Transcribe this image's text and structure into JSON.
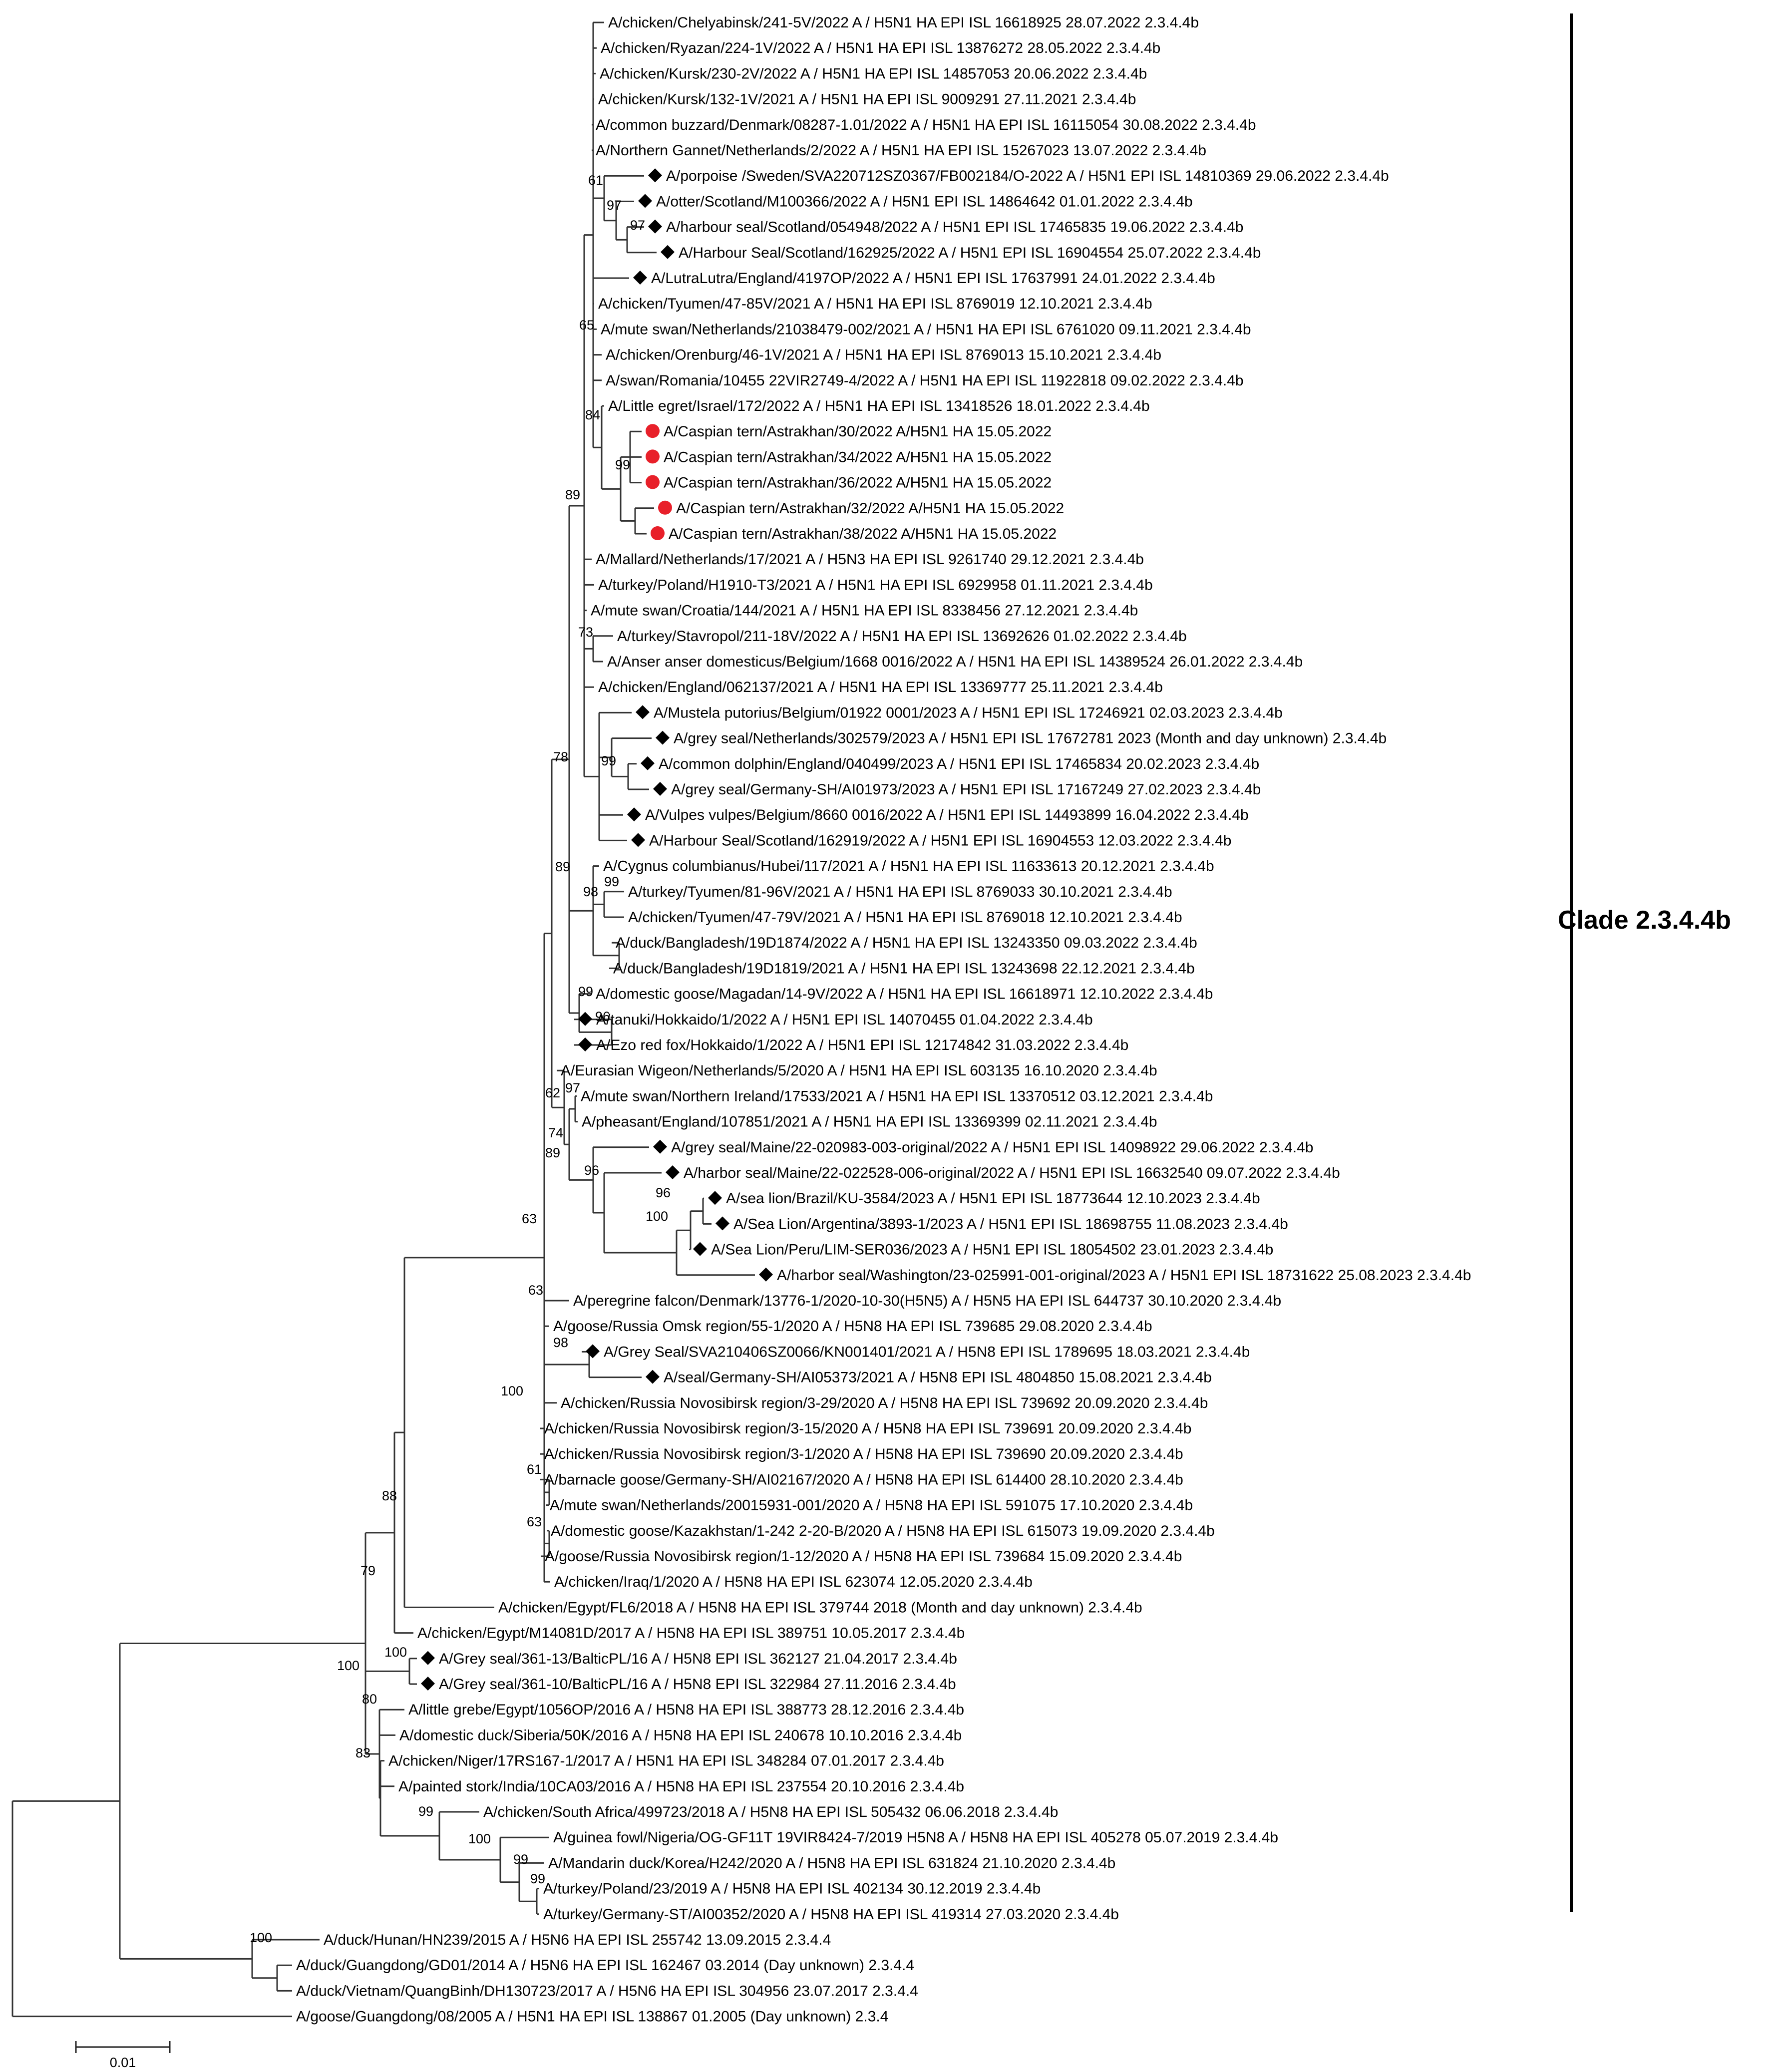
{
  "figure": {
    "clade_label": "Clade 2.3.4.4b",
    "scale_bar_label": "0.01",
    "marker_colors": {
      "red_circle": "#e8202a",
      "black_diamond": "#000000"
    }
  },
  "tree": {
    "type": "phylogenetic_tree",
    "marker_legend": {
      "circle": "red circle",
      "diamond": "black diamond"
    },
    "taxa": [
      {
        "label": "A/chicken/Chelyabinsk/241-5V/2022 A / H5N1 HA EPI ISL 16618925 28.07.2022 2.3.4.4b",
        "marker": null
      },
      {
        "label": "A/chicken/Ryazan/224-1V/2022 A / H5N1 HA EPI ISL 13876272 28.05.2022 2.3.4.4b",
        "marker": null
      },
      {
        "label": "A/chicken/Kursk/230-2V/2022 A / H5N1 HA EPI ISL 14857053 20.06.2022 2.3.4.4b",
        "marker": null
      },
      {
        "label": "A/chicken/Kursk/132-1V/2021 A / H5N1 HA EPI ISL 9009291 27.11.2021 2.3.4.4b",
        "marker": null
      },
      {
        "label": "A/common buzzard/Denmark/08287-1.01/2022 A / H5N1 HA EPI ISL 16115054 30.08.2022 2.3.4.4b",
        "marker": null
      },
      {
        "label": "A/Northern Gannet/Netherlands/2/2022 A / H5N1 HA EPI ISL 15267023 13.07.2022 2.3.4.4b",
        "marker": null
      },
      {
        "label": "A/porpoise /Sweden/SVA220712SZ0367/FB002184/O-2022 A / H5N1 EPI ISL 14810369 29.06.2022 2.3.4.4b",
        "marker": "diamond"
      },
      {
        "label": "A/otter/Scotland/M100366/2022 A / H5N1 EPI ISL 14864642 01.01.2022 2.3.4.4b",
        "marker": "diamond"
      },
      {
        "label": "A/harbour seal/Scotland/054948/2022 A / H5N1 EPI ISL 17465835 19.06.2022 2.3.4.4b",
        "marker": "diamond"
      },
      {
        "label": "A/Harbour Seal/Scotland/162925/2022 A / H5N1 EPI ISL 16904554 25.07.2022 2.3.4.4b",
        "marker": "diamond"
      },
      {
        "label": "A/LutraLutra/England/4197OP/2022 A / H5N1 EPI ISL 17637991 24.01.2022 2.3.4.4b",
        "marker": "diamond"
      },
      {
        "label": "A/chicken/Tyumen/47-85V/2021 A / H5N1 HA EPI ISL 8769019 12.10.2021 2.3.4.4b",
        "marker": null
      },
      {
        "label": "A/mute swan/Netherlands/21038479-002/2021 A / H5N1 HA EPI ISL 6761020 09.11.2021 2.3.4.4b",
        "marker": null
      },
      {
        "label": "A/chicken/Orenburg/46-1V/2021 A / H5N1 HA EPI ISL 8769013 15.10.2021 2.3.4.4b",
        "marker": null
      },
      {
        "label": "A/swan/Romania/10455 22VIR2749-4/2022 A / H5N1 HA EPI ISL 11922818 09.02.2022 2.3.4.4b",
        "marker": null
      },
      {
        "label": "A/Little egret/Israel/172/2022 A / H5N1 HA EPI ISL 13418526 18.01.2022 2.3.4.4b",
        "marker": null
      },
      {
        "label": "A/Caspian tern/Astrakhan/30/2022 A/H5N1 HA 15.05.2022",
        "marker": "circle"
      },
      {
        "label": "A/Caspian tern/Astrakhan/34/2022 A/H5N1 HA 15.05.2022",
        "marker": "circle"
      },
      {
        "label": "A/Caspian tern/Astrakhan/36/2022 A/H5N1 HA 15.05.2022",
        "marker": "circle"
      },
      {
        "label": "A/Caspian tern/Astrakhan/32/2022 A/H5N1 HA 15.05.2022",
        "marker": "circle"
      },
      {
        "label": "A/Caspian tern/Astrakhan/38/2022 A/H5N1 HA 15.05.2022",
        "marker": "circle"
      },
      {
        "label": "A/Mallard/Netherlands/17/2021 A / H5N3 HA EPI ISL 9261740 29.12.2021 2.3.4.4b",
        "marker": null
      },
      {
        "label": "A/turkey/Poland/H1910-T3/2021 A / H5N1 HA EPI ISL 6929958 01.11.2021 2.3.4.4b",
        "marker": null
      },
      {
        "label": "A/mute swan/Croatia/144/2021 A / H5N1 HA EPI ISL 8338456 27.12.2021 2.3.4.4b",
        "marker": null
      },
      {
        "label": "A/turkey/Stavropol/211-18V/2022 A / H5N1 HA EPI ISL 13692626 01.02.2022 2.3.4.4b",
        "marker": null
      },
      {
        "label": "A/Anser anser domesticus/Belgium/1668 0016/2022 A / H5N1 HA EPI ISL 14389524 26.01.2022 2.3.4.4b",
        "marker": null
      },
      {
        "label": "A/chicken/England/062137/2021 A / H5N1 HA EPI ISL 13369777 25.11.2021 2.3.4.4b",
        "marker": null
      },
      {
        "label": "A/Mustela putorius/Belgium/01922 0001/2023 A / H5N1 EPI ISL 17246921 02.03.2023 2.3.4.4b",
        "marker": "diamond"
      },
      {
        "label": "A/grey seal/Netherlands/302579/2023 A / H5N1 EPI ISL 17672781 2023 (Month and day unknown) 2.3.4.4b",
        "marker": "diamond"
      },
      {
        "label": "A/common dolphin/England/040499/2023 A / H5N1 EPI ISL 17465834 20.02.2023 2.3.4.4b",
        "marker": "diamond"
      },
      {
        "label": "A/grey seal/Germany-SH/AI01973/2023 A / H5N1 EPI ISL 17167249 27.02.2023 2.3.4.4b",
        "marker": "diamond"
      },
      {
        "label": "A/Vulpes vulpes/Belgium/8660 0016/2022 A / H5N1 EPI ISL 14493899 16.04.2022 2.3.4.4b",
        "marker": "diamond"
      },
      {
        "label": "A/Harbour Seal/Scotland/162919/2022 A / H5N1 EPI ISL 16904553 12.03.2022 2.3.4.4b",
        "marker": "diamond"
      },
      {
        "label": "A/Cygnus columbianus/Hubei/117/2021 A / H5N1 HA EPI ISL 11633613 20.12.2021 2.3.4.4b",
        "marker": null
      },
      {
        "label": "A/turkey/Tyumen/81-96V/2021 A / H5N1 HA EPI ISL 8769033 30.10.2021 2.3.4.4b",
        "marker": null
      },
      {
        "label": "A/chicken/Tyumen/47-79V/2021 A / H5N1 HA EPI ISL 8769018 12.10.2021 2.3.4.4b",
        "marker": null
      },
      {
        "label": "A/duck/Bangladesh/19D1874/2022 A / H5N1 HA EPI ISL 13243350 09.03.2022 2.3.4.4b",
        "marker": null
      },
      {
        "label": "A/duck/Bangladesh/19D1819/2021 A / H5N1 HA EPI ISL 13243698 22.12.2021 2.3.4.4b",
        "marker": null
      },
      {
        "label": "A/domestic goose/Magadan/14-9V/2022 A / H5N1 HA EPI ISL 16618971 12.10.2022 2.3.4.4b",
        "marker": null
      },
      {
        "label": "A/tanuki/Hokkaido/1/2022 A / H5N1 EPI ISL 14070455 01.04.2022 2.3.4.4b",
        "marker": "diamond"
      },
      {
        "label": "A/Ezo red fox/Hokkaido/1/2022 A / H5N1 EPI ISL 12174842 31.03.2022 2.3.4.4b",
        "marker": "diamond"
      },
      {
        "label": "A/Eurasian Wigeon/Netherlands/5/2020 A / H5N1 HA EPI ISL 603135 16.10.2020 2.3.4.4b",
        "marker": null
      },
      {
        "label": "A/mute swan/Northern Ireland/17533/2021 A / H5N1 HA EPI ISL 13370512 03.12.2021 2.3.4.4b",
        "marker": null
      },
      {
        "label": "A/pheasant/England/107851/2021 A / H5N1 HA EPI ISL 13369399 02.11.2021 2.3.4.4b",
        "marker": null
      },
      {
        "label": "A/grey seal/Maine/22-020983-003-original/2022 A / H5N1 EPI ISL 14098922 29.06.2022 2.3.4.4b",
        "marker": "diamond"
      },
      {
        "label": "A/harbor seal/Maine/22-022528-006-original/2022 A / H5N1 EPI ISL 16632540 09.07.2022 2.3.4.4b",
        "marker": "diamond"
      },
      {
        "label": "A/sea lion/Brazil/KU-3584/2023 A / H5N1 EPI ISL 18773644 12.10.2023 2.3.4.4b",
        "marker": "diamond"
      },
      {
        "label": "A/Sea Lion/Argentina/3893-1/2023 A / H5N1 EPI ISL 18698755 11.08.2023 2.3.4.4b",
        "marker": "diamond"
      },
      {
        "label": "A/Sea Lion/Peru/LIM-SER036/2023 A / H5N1 EPI ISL 18054502 23.01.2023 2.3.4.4b",
        "marker": "diamond"
      },
      {
        "label": "A/harbor seal/Washington/23-025991-001-original/2023 A / H5N1 EPI ISL 18731622 25.08.2023 2.3.4.4b",
        "marker": "diamond"
      },
      {
        "label": "A/peregrine falcon/Denmark/13776-1/2020-10-30(H5N5) A / H5N5 HA EPI ISL 644737 30.10.2020 2.3.4.4b",
        "marker": null
      },
      {
        "label": "A/goose/Russia Omsk region/55-1/2020 A / H5N8 HA EPI ISL 739685 29.08.2020 2.3.4.4b",
        "marker": null
      },
      {
        "label": "A/Grey Seal/SVA210406SZ0066/KN001401/2021 A / H5N8 EPI ISL 1789695 18.03.2021 2.3.4.4b",
        "marker": "diamond"
      },
      {
        "label": "A/seal/Germany-SH/AI05373/2021 A / H5N8 EPI ISL 4804850 15.08.2021 2.3.4.4b",
        "marker": "diamond"
      },
      {
        "label": "A/chicken/Russia Novosibirsk region/3-29/2020 A / H5N8 HA EPI ISL 739692 20.09.2020 2.3.4.4b",
        "marker": null
      },
      {
        "label": "A/chicken/Russia Novosibirsk region/3-15/2020 A / H5N8 HA EPI ISL 739691 20.09.2020 2.3.4.4b",
        "marker": null
      },
      {
        "label": "A/chicken/Russia Novosibirsk region/3-1/2020 A / H5N8 HA EPI ISL 739690 20.09.2020 2.3.4.4b",
        "marker": null
      },
      {
        "label": "A/barnacle goose/Germany-SH/AI02167/2020 A / H5N8 HA EPI ISL 614400 28.10.2020 2.3.4.4b",
        "marker": null
      },
      {
        "label": "A/mute swan/Netherlands/20015931-001/2020 A / H5N8 HA EPI ISL 591075 17.10.2020 2.3.4.4b",
        "marker": null
      },
      {
        "label": "A/domestic goose/Kazakhstan/1-242 2-20-B/2020 A / H5N8 HA EPI ISL 615073 19.09.2020 2.3.4.4b",
        "marker": null
      },
      {
        "label": "A/goose/Russia Novosibirsk region/1-12/2020 A / H5N8 HA EPI ISL 739684 15.09.2020 2.3.4.4b",
        "marker": null
      },
      {
        "label": "A/chicken/Iraq/1/2020 A / H5N8 HA EPI ISL 623074 12.05.2020 2.3.4.4b",
        "marker": null
      },
      {
        "label": "A/chicken/Egypt/FL6/2018 A / H5N8 HA EPI ISL 379744 2018 (Month and day unknown) 2.3.4.4b",
        "marker": null
      },
      {
        "label": "A/chicken/Egypt/M14081D/2017 A / H5N8 HA EPI ISL 389751 10.05.2017 2.3.4.4b",
        "marker": null
      },
      {
        "label": "A/Grey seal/361-13/BalticPL/16 A / H5N8 EPI ISL 362127 21.04.2017 2.3.4.4b",
        "marker": "diamond"
      },
      {
        "label": "A/Grey seal/361-10/BalticPL/16 A / H5N8 EPI ISL 322984 27.11.2016 2.3.4.4b",
        "marker": "diamond"
      },
      {
        "label": "A/little grebe/Egypt/1056OP/2016 A / H5N8 HA EPI ISL 388773 28.12.2016 2.3.4.4b",
        "marker": null
      },
      {
        "label": "A/domestic duck/Siberia/50K/2016 A / H5N8 HA EPI ISL 240678 10.10.2016 2.3.4.4b",
        "marker": null
      },
      {
        "label": "A/chicken/Niger/17RS167-1/2017 A / H5N1 HA EPI ISL 348284 07.01.2017 2.3.4.4b",
        "marker": null
      },
      {
        "label": "A/painted stork/India/10CA03/2016 A / H5N8 HA EPI ISL 237554 20.10.2016 2.3.4.4b",
        "marker": null
      },
      {
        "label": "A/chicken/South Africa/499723/2018 A / H5N8 HA EPI ISL 505432 06.06.2018 2.3.4.4b",
        "marker": null
      },
      {
        "label": "A/guinea fowl/Nigeria/OG-GF11T 19VIR8424-7/2019 H5N8 A / H5N8 HA EPI ISL 405278 05.07.2019 2.3.4.4b",
        "marker": null
      },
      {
        "label": "A/Mandarin duck/Korea/H242/2020 A / H5N8 HA EPI ISL 631824 21.10.2020 2.3.4.4b",
        "marker": null
      },
      {
        "label": "A/turkey/Poland/23/2019 A / H5N8 HA EPI ISL 402134 30.12.2019 2.3.4.4b",
        "marker": null
      },
      {
        "label": "A/turkey/Germany-ST/AI00352/2020 A / H5N8 HA EPI ISL 419314 27.03.2020 2.3.4.4b",
        "marker": null
      },
      {
        "label": "A/duck/Hunan/HN239/2015 A / H5N6 HA EPI ISL 255742 13.09.2015 2.3.4.4",
        "marker": null
      },
      {
        "label": "A/duck/Guangdong/GD01/2014 A / H5N6 HA EPI ISL 162467 03.2014 (Day unknown) 2.3.4.4",
        "marker": null
      },
      {
        "label": "A/duck/Vietnam/QuangBinh/DH130723/2017 A / H5N6 HA EPI ISL 304956 23.07.2017 2.3.4.4",
        "marker": null
      },
      {
        "label": "A/goose/Guangdong/08/2005 A / H5N1 HA EPI ISL 138867 01.2005 (Day unknown) 2.3.4",
        "marker": null
      }
    ],
    "bootstrap_values": [
      "61",
      "97",
      "97",
      "65",
      "84",
      "99",
      "89",
      "73",
      "99",
      "78",
      "98",
      "99",
      "89",
      "99",
      "96",
      "97",
      "62",
      "74",
      "96",
      "96",
      "100",
      "89",
      "63",
      "63",
      "98",
      "61",
      "63",
      "100",
      "88",
      "79",
      "100",
      "100",
      "80",
      "83",
      "99",
      "100",
      "99",
      "99",
      "100"
    ]
  }
}
